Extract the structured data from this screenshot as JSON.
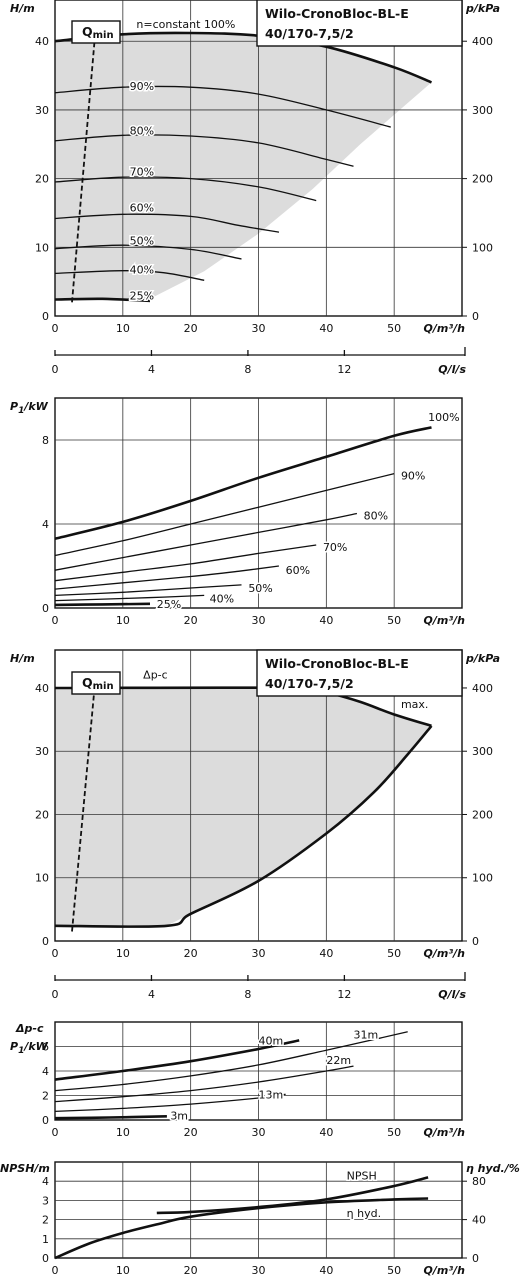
{
  "chart_data": [
    {
      "id": "hq_constant",
      "type": "line",
      "title": [
        "Wilo-CronoBloc-BL-E",
        "40/170-7,5/2"
      ],
      "ylabel": "H/m",
      "y2label": "p/kPa",
      "xlabel": "Q/m³/h",
      "xlim": [
        0,
        60
      ],
      "ylim": [
        0,
        46
      ],
      "xticks": [
        0,
        10,
        20,
        30,
        40,
        50
      ],
      "yticks": [
        0,
        10,
        20,
        30,
        40
      ],
      "y2ticks": [
        0,
        100,
        200,
        300,
        400
      ],
      "qmin_label": "Q",
      "qmin_sub": "min",
      "qmin_line": [
        [
          2.5,
          2
        ],
        [
          6,
          42
        ]
      ],
      "envelope": [
        [
          0,
          0
        ],
        [
          0,
          40
        ],
        [
          10,
          41
        ],
        [
          20,
          41.2
        ],
        [
          30,
          40.8
        ],
        [
          40,
          39.2
        ],
        [
          50,
          36.2
        ],
        [
          55.5,
          34
        ],
        [
          52,
          31
        ],
        [
          45,
          25
        ],
        [
          38,
          18.5
        ],
        [
          30,
          12
        ],
        [
          22,
          6.5
        ],
        [
          14,
          2.5
        ],
        [
          0,
          2.5
        ]
      ],
      "series": [
        {
          "name": "n=constant 100%",
          "label_pos": [
            12,
            42.5
          ],
          "bold": true,
          "points": [
            [
              0,
              40
            ],
            [
              10,
              41
            ],
            [
              20,
              41.2
            ],
            [
              30,
              40.8
            ],
            [
              40,
              39.2
            ],
            [
              50,
              36.2
            ],
            [
              55.5,
              34
            ]
          ]
        },
        {
          "name": "90%",
          "label_pos": [
            11,
            33.5
          ],
          "points": [
            [
              0,
              32.5
            ],
            [
              10,
              33.3
            ],
            [
              20,
              33.3
            ],
            [
              30,
              32.3
            ],
            [
              40,
              30
            ],
            [
              49.5,
              27.5
            ]
          ]
        },
        {
          "name": "80%",
          "label_pos": [
            11,
            27
          ],
          "points": [
            [
              0,
              25.5
            ],
            [
              10,
              26.3
            ],
            [
              20,
              26.2
            ],
            [
              30,
              25.2
            ],
            [
              40,
              22.8
            ],
            [
              44,
              21.8
            ]
          ]
        },
        {
          "name": "70%",
          "label_pos": [
            11,
            21
          ],
          "points": [
            [
              0,
              19.5
            ],
            [
              10,
              20.2
            ],
            [
              20,
              20
            ],
            [
              30,
              18.8
            ],
            [
              38.5,
              16.8
            ]
          ]
        },
        {
          "name": "60%",
          "label_pos": [
            11,
            15.8
          ],
          "points": [
            [
              0,
              14.2
            ],
            [
              10,
              14.8
            ],
            [
              20,
              14.5
            ],
            [
              27,
              13.2
            ],
            [
              33,
              12.2
            ]
          ]
        },
        {
          "name": "50%",
          "label_pos": [
            11,
            11
          ],
          "points": [
            [
              0,
              9.8
            ],
            [
              10,
              10.3
            ],
            [
              20,
              9.7
            ],
            [
              27.5,
              8.3
            ]
          ]
        },
        {
          "name": "40%",
          "label_pos": [
            11,
            6.8
          ],
          "points": [
            [
              0,
              6.2
            ],
            [
              10,
              6.6
            ],
            [
              16,
              6.3
            ],
            [
              22,
              5.2
            ]
          ]
        },
        {
          "name": "25%",
          "label_pos": [
            11,
            3
          ],
          "bold": true,
          "points": [
            [
              0,
              2.4
            ],
            [
              7,
              2.5
            ],
            [
              14,
              2.2
            ]
          ]
        }
      ]
    },
    {
      "id": "q_ls_axis_1",
      "type": "axis",
      "xlabel": "Q/l/s",
      "xlim": [
        0,
        16.67
      ],
      "xticks": [
        0,
        4,
        8,
        12
      ]
    },
    {
      "id": "power_constant",
      "type": "line",
      "ylabel_main": "P",
      "ylabel_sub": "1",
      "ylabel_unit": "/kW",
      "xlabel": "Q/m³/h",
      "xlim": [
        0,
        60
      ],
      "ylim": [
        0,
        10
      ],
      "xticks": [
        0,
        10,
        20,
        30,
        40,
        50
      ],
      "yticks": [
        0,
        4,
        8
      ],
      "series": [
        {
          "name": "100%",
          "label_pos": [
            55,
            9.1
          ],
          "bold": true,
          "points": [
            [
              0,
              3.3
            ],
            [
              10,
              4.1
            ],
            [
              20,
              5.1
            ],
            [
              30,
              6.2
            ],
            [
              40,
              7.2
            ],
            [
              50,
              8.2
            ],
            [
              55.5,
              8.6
            ]
          ]
        },
        {
          "name": "90%",
          "label_pos": [
            51,
            6.3
          ],
          "points": [
            [
              0,
              2.5
            ],
            [
              10,
              3.2
            ],
            [
              20,
              4
            ],
            [
              30,
              4.8
            ],
            [
              40,
              5.6
            ],
            [
              50,
              6.4
            ]
          ]
        },
        {
          "name": "80%",
          "label_pos": [
            45.5,
            4.4
          ],
          "points": [
            [
              0,
              1.8
            ],
            [
              10,
              2.4
            ],
            [
              20,
              3
            ],
            [
              30,
              3.6
            ],
            [
              40,
              4.2
            ],
            [
              44.5,
              4.5
            ]
          ]
        },
        {
          "name": "70%",
          "label_pos": [
            39.5,
            2.9
          ],
          "points": [
            [
              0,
              1.3
            ],
            [
              10,
              1.7
            ],
            [
              20,
              2.1
            ],
            [
              30,
              2.6
            ],
            [
              38.5,
              3
            ]
          ]
        },
        {
          "name": "60%",
          "label_pos": [
            34,
            1.8
          ],
          "points": [
            [
              0,
              0.9
            ],
            [
              10,
              1.2
            ],
            [
              20,
              1.5
            ],
            [
              27,
              1.75
            ],
            [
              33,
              2
            ]
          ]
        },
        {
          "name": "50%",
          "label_pos": [
            28.5,
            0.95
          ],
          "points": [
            [
              0,
              0.6
            ],
            [
              10,
              0.75
            ],
            [
              20,
              0.95
            ],
            [
              27.5,
              1.1
            ]
          ]
        },
        {
          "name": "40%",
          "label_pos": [
            22.8,
            0.45
          ],
          "points": [
            [
              0,
              0.35
            ],
            [
              10,
              0.45
            ],
            [
              16,
              0.52
            ],
            [
              22,
              0.6
            ]
          ]
        },
        {
          "name": "25%",
          "label_pos": [
            15,
            0.2
          ],
          "bold": true,
          "points": [
            [
              0,
              0.15
            ],
            [
              7,
              0.17
            ],
            [
              14,
              0.2
            ]
          ]
        }
      ]
    },
    {
      "id": "hq_dpc",
      "type": "line",
      "title": [
        "Wilo-CronoBloc-BL-E",
        "40/170-7,5/2"
      ],
      "ylabel": "H/m",
      "y2label": "p/kPa",
      "xlabel": "Q/m³/h",
      "xlim": [
        0,
        60
      ],
      "ylim": [
        0,
        46
      ],
      "xticks": [
        0,
        10,
        20,
        30,
        40,
        50
      ],
      "yticks": [
        0,
        10,
        20,
        30,
        40
      ],
      "y2ticks": [
        0,
        100,
        200,
        300,
        400
      ],
      "qmin_label": "Q",
      "qmin_sub": "min",
      "qmin_line": [
        [
          2.5,
          1.5
        ],
        [
          6,
          42
        ]
      ],
      "mode_label": "Δp-c",
      "mode_label_pos": [
        13,
        41.5
      ],
      "max_label": "max.",
      "max_label_pos": [
        51,
        36.8
      ],
      "envelope": [
        [
          0,
          2.4
        ],
        [
          0,
          40
        ],
        [
          36,
          40
        ],
        [
          40,
          39.3
        ],
        [
          45,
          37.8
        ],
        [
          50,
          35.8
        ],
        [
          55.5,
          34
        ],
        [
          52,
          29.5
        ],
        [
          47,
          23.5
        ],
        [
          40,
          17
        ],
        [
          30,
          9.5
        ],
        [
          20,
          4.3
        ],
        [
          16.5,
          2.4
        ]
      ],
      "series": [
        {
          "name": "top",
          "bold": true,
          "points": [
            [
              0,
              40
            ],
            [
              36,
              40
            ],
            [
              40,
              39.3
            ],
            [
              45,
              37.8
            ],
            [
              50,
              35.8
            ],
            [
              55.5,
              34
            ]
          ]
        },
        {
          "name": "right",
          "bold": true,
          "points": [
            [
              55.5,
              34
            ],
            [
              52,
              29.5
            ],
            [
              47,
              23.5
            ],
            [
              40,
              17
            ],
            [
              30,
              9.5
            ],
            [
              20,
              4.3
            ],
            [
              16.5,
              2.4
            ],
            [
              0,
              2.4
            ]
          ]
        }
      ]
    },
    {
      "id": "q_ls_axis_2",
      "type": "axis",
      "xlabel": "Q/l/s",
      "xlim": [
        0,
        16.67
      ],
      "xticks": [
        0,
        4,
        8,
        12
      ]
    },
    {
      "id": "power_dpc",
      "type": "line",
      "ylabel_top": "Δp-c",
      "ylabel_main": "P",
      "ylabel_sub": "1",
      "ylabel_unit": "/kW",
      "xlabel": "Q/m³/h",
      "xlim": [
        0,
        60
      ],
      "ylim": [
        0,
        8
      ],
      "xticks": [
        0,
        10,
        20,
        30,
        40,
        50
      ],
      "yticks": [
        0,
        2,
        4,
        6
      ],
      "series": [
        {
          "name": "40m",
          "label_pos": [
            30,
            6.5
          ],
          "bold": true,
          "points": [
            [
              0,
              3.3
            ],
            [
              10,
              4
            ],
            [
              20,
              4.8
            ],
            [
              30,
              5.8
            ],
            [
              36,
              6.5
            ]
          ]
        },
        {
          "name": "31m",
          "label_pos": [
            44,
            7
          ],
          "points": [
            [
              0,
              2.4
            ],
            [
              10,
              2.9
            ],
            [
              20,
              3.6
            ],
            [
              30,
              4.5
            ],
            [
              40,
              5.7
            ],
            [
              52,
              7.2
            ]
          ]
        },
        {
          "name": "22m",
          "label_pos": [
            40,
            4.9
          ],
          "points": [
            [
              0,
              1.5
            ],
            [
              10,
              1.9
            ],
            [
              20,
              2.4
            ],
            [
              30,
              3.1
            ],
            [
              40,
              4
            ],
            [
              44,
              4.4
            ]
          ]
        },
        {
          "name": "13m",
          "label_pos": [
            30,
            2.1
          ],
          "points": [
            [
              0,
              0.7
            ],
            [
              10,
              0.95
            ],
            [
              20,
              1.3
            ],
            [
              30,
              1.8
            ],
            [
              34,
              2.1
            ]
          ]
        },
        {
          "name": "3m",
          "label_pos": [
            17,
            0.35
          ],
          "bold": true,
          "points": [
            [
              0,
              0.15
            ],
            [
              8,
              0.2
            ],
            [
              16.5,
              0.3
            ]
          ]
        }
      ]
    },
    {
      "id": "npsh_eta",
      "type": "line",
      "ylabel": "NPSH/m",
      "y2label": "η hyd./%",
      "xlabel": "Q/m³/h",
      "xlim": [
        0,
        60
      ],
      "ylim": [
        0,
        5
      ],
      "y2lim": [
        0,
        100
      ],
      "xticks": [
        0,
        10,
        20,
        30,
        40,
        50
      ],
      "yticks": [
        0,
        1,
        2,
        3,
        4
      ],
      "y2ticks": [
        0,
        40,
        80
      ],
      "series": [
        {
          "name": "NPSH",
          "label_pos": [
            43,
            4.3
          ],
          "bold": true,
          "points": [
            [
              15,
              2.35
            ],
            [
              20,
              2.4
            ],
            [
              30,
              2.65
            ],
            [
              40,
              3.05
            ],
            [
              50,
              3.75
            ],
            [
              55,
              4.2
            ]
          ]
        },
        {
          "name": "η hyd.",
          "label_pos": [
            43,
            2.35
          ],
          "bold": true,
          "points": [
            [
              0,
              0
            ],
            [
              5,
              0.75
            ],
            [
              10,
              1.3
            ],
            [
              15,
              1.75
            ],
            [
              20,
              2.15
            ],
            [
              30,
              2.6
            ],
            [
              40,
              2.9
            ],
            [
              50,
              3.05
            ],
            [
              55,
              3.1
            ]
          ]
        }
      ]
    }
  ]
}
